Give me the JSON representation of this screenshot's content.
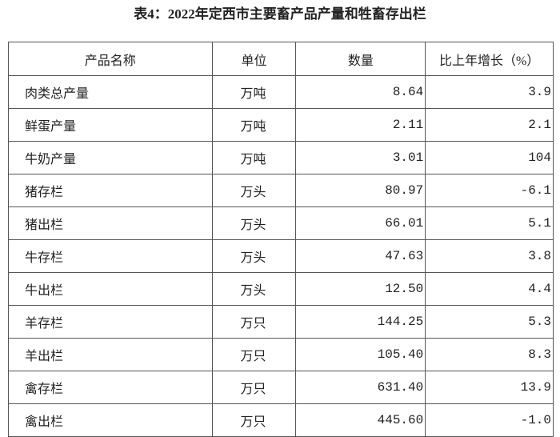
{
  "header": {
    "title": "表4：2022年定西市主要畜产品产量和牲畜存出栏"
  },
  "table": {
    "columns": [
      "产品名称",
      "单位",
      "数量",
      "比上年增长（%）"
    ],
    "rows": [
      [
        "肉类总产量",
        "万吨",
        "8.64",
        "3.9"
      ],
      [
        "鲜蛋产量",
        "万吨",
        "2.11",
        "2.1"
      ],
      [
        "牛奶产量",
        "万吨",
        "3.01",
        "104"
      ],
      [
        "猪存栏",
        "万头",
        "80.97",
        "-6.1"
      ],
      [
        "猪出栏",
        "万头",
        "66.01",
        "5.1"
      ],
      [
        "牛存栏",
        "万头",
        "47.63",
        "3.8"
      ],
      [
        "牛出栏",
        "万头",
        "12.50",
        "4.4"
      ],
      [
        "羊存栏",
        "万只",
        "144.25",
        "5.3"
      ],
      [
        "羊出栏",
        "万只",
        "105.40",
        "8.3"
      ],
      [
        "禽存栏",
        "万只",
        "631.40",
        "13.9"
      ],
      [
        "禽出栏",
        "万只",
        "445.60",
        "-1.0"
      ]
    ]
  }
}
